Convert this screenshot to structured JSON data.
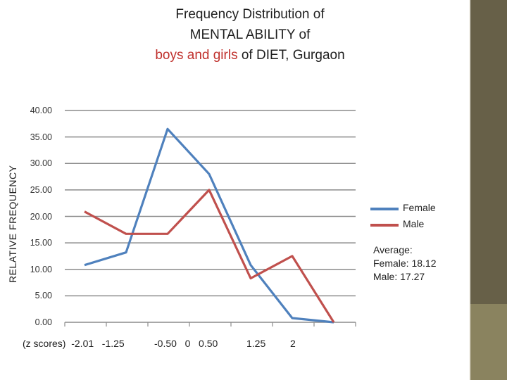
{
  "title": {
    "line1": "Frequency Distribution of",
    "line2": "MENTAL ABILITY of",
    "line3_highlight": "boys and girls",
    "line3_rest": " of DIET, Gurgaon"
  },
  "x_axis_label": {
    "part1": "(z scores)  -2.01   -1.25",
    "part2": "-0.50   0   0.50",
    "part3": "1.25",
    "part4": "2"
  },
  "legend": {
    "female": "Female",
    "male": "Male"
  },
  "notes": {
    "heading": "Average:",
    "female": "Female: 18.12",
    "male": "Male: 17.27"
  },
  "colors": {
    "female": "#4f81bd",
    "male": "#c0504d",
    "grid": "#8c8c8c",
    "title_highlight": "#c0312d",
    "side_bar": "#676048"
  },
  "chart_data": {
    "type": "line",
    "title": "Frequency Distribution of MENTAL ABILITY of boys and girls of DIET, Gurgaon",
    "ylabel": "RELATIVE  FREQUENCY",
    "xlabel": "(z scores)  -2.01   -1.25   -0.50   0   0.50   1.25   2",
    "ylim": [
      0,
      40
    ],
    "yticks": [
      "0.00",
      "5.00",
      "10.00",
      "15.00",
      "20.00",
      "25.00",
      "30.00",
      "35.00",
      "40.00"
    ],
    "grid": true,
    "legend_position": "right",
    "series": [
      {
        "name": "Female",
        "values": [
          10.8,
          13.2,
          36.5,
          28.0,
          10.8,
          0.8,
          0.0
        ]
      },
      {
        "name": "Male",
        "values": [
          20.9,
          16.7,
          16.7,
          25.0,
          8.3,
          12.5,
          0.0
        ]
      }
    ]
  }
}
